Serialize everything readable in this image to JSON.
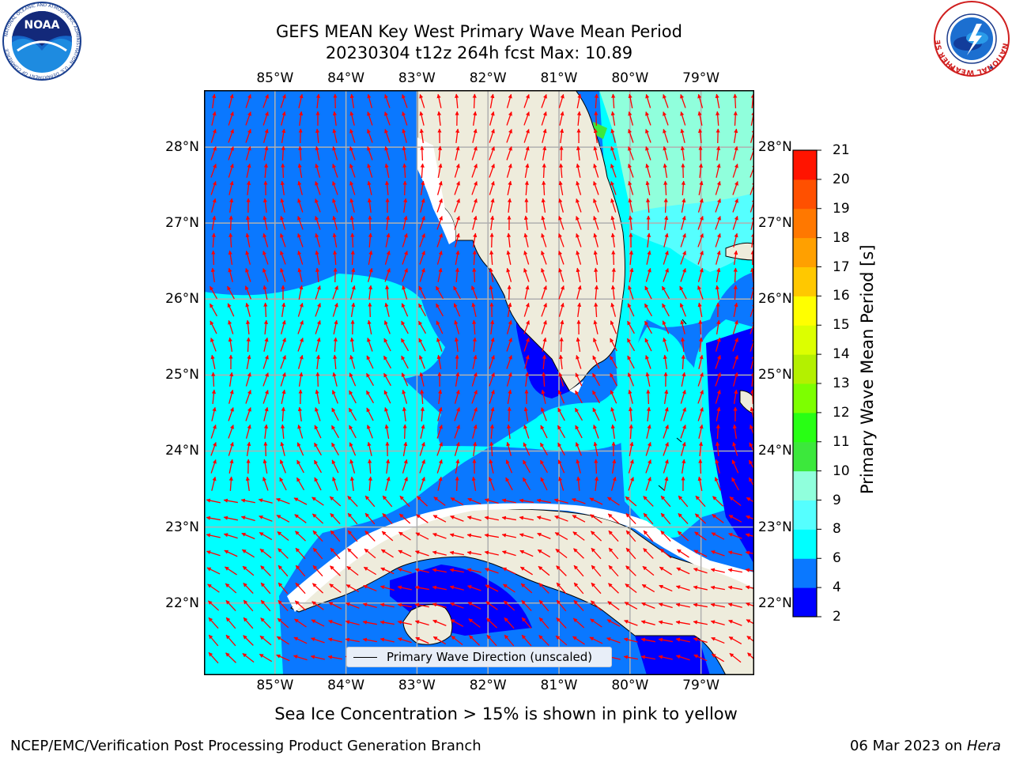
{
  "title": {
    "line1": "GEFS MEAN Key West Primary Wave Mean Period",
    "line2": "20230304 t12z 264h fcst   Max: 10.89"
  },
  "axes": {
    "lon_ticks": [
      "85°W",
      "84°W",
      "83°W",
      "82°W",
      "81°W",
      "80°W",
      "79°W"
    ],
    "lat_ticks": [
      "28°N",
      "27°N",
      "26°N",
      "25°N",
      "24°N",
      "23°N",
      "22°N"
    ]
  },
  "map": {
    "extent_lon": [
      -86.0,
      -78.25
    ],
    "extent_lat": [
      21.05,
      28.75
    ],
    "land_color": "#eeecdc",
    "grid_color": "#b0b0b0"
  },
  "colorbar": {
    "label": "Primary Wave Mean Period [s]",
    "ticks": [
      "2",
      "4",
      "6",
      "8",
      "9",
      "10",
      "11",
      "12",
      "13",
      "14",
      "15",
      "16",
      "17",
      "18",
      "19",
      "20",
      "21"
    ],
    "colors": [
      "#0000ff",
      "#0a78ff",
      "#00ffff",
      "#55ffff",
      "#90ffdc",
      "#3ce83c",
      "#28ff14",
      "#7dff00",
      "#b4f000",
      "#dcff00",
      "#ffff00",
      "#ffc800",
      "#ffa000",
      "#ff7800",
      "#ff5000",
      "#ff1400"
    ]
  },
  "legend": {
    "label": "Primary Wave Direction (unscaled)"
  },
  "note": "Sea Ice Concentration > 15% is shown in pink to yellow",
  "footer": {
    "left": "NCEP/EMC/Verification Post Processing Product Generation Branch",
    "right_date": "06 Mar 2023 on",
    "right_host": "Hera"
  },
  "logos": {
    "noaa": "NOAA",
    "noaa_ring": "NATIONAL OCEANIC AND ATMOSPHERIC ADMINISTRATION · U.S. DEPARTMENT OF COMMERCE",
    "nws": "NATIONAL WEATHER SERVICE"
  },
  "arrow_color": "#ff0000"
}
